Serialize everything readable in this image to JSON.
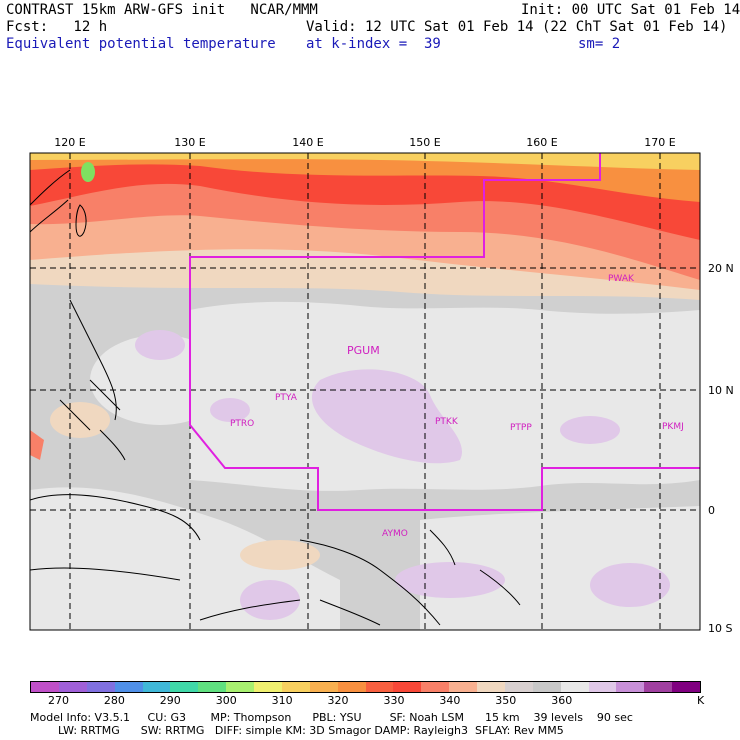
{
  "header": {
    "line1_left": "CONTRAST 15km ARW-GFS init   NCAR/MMM",
    "line1_right": "Init: 00 UTC Sat 01 Feb 14",
    "line2_left": "Fcst:   12 h",
    "line2_right": "Valid: 12 UTC Sat 01 Feb 14 (22 ChT Sat 01 Feb 14)",
    "line3_left": "Equivalent potential temperature",
    "line3_mid": "at k-index =  39",
    "line3_right": "sm= 2"
  },
  "map": {
    "lon_labels": [
      "120 E",
      "130 E",
      "140 E",
      "150 E",
      "160 E",
      "170 E"
    ],
    "lat_labels": [
      "20 N",
      "10 N",
      "0",
      "10 S"
    ],
    "stations": [
      "PWAK",
      "PGUM",
      "PTYA",
      "PTRO",
      "PTKK",
      "PTPP",
      "PKMJ",
      "AYMO"
    ]
  },
  "colorbar": {
    "colors": [
      "#c050c8",
      "#a060d8",
      "#8070e0",
      "#5090e8",
      "#40b8d8",
      "#40d8a8",
      "#60e080",
      "#a8f070",
      "#f0f070",
      "#f8d060",
      "#f8b050",
      "#f89040",
      "#f86040",
      "#f84838",
      "#f88068",
      "#f8b090",
      "#f0d8c0",
      "#d8d0d0",
      "#c8c8c8",
      "#e8e8e8",
      "#e0c8e8",
      "#c890d8",
      "#a040a0",
      "#800080"
    ],
    "labels": [
      "270",
      "280",
      "290",
      "300",
      "310",
      "320",
      "330",
      "340",
      "350",
      "360",
      "K"
    ]
  },
  "footer": {
    "line1": "Model Info: V3.5.1     CU: G3       MP: Thompson      PBL: YSU        SF: Noah LSM      15 km    39 levels    90 sec",
    "line2": "        LW: RRTMG      SW: RRTMG   DIFF: simple KM: 3D Smagor DAMP: Rayleigh3  SFLAY: Rev MM5"
  }
}
